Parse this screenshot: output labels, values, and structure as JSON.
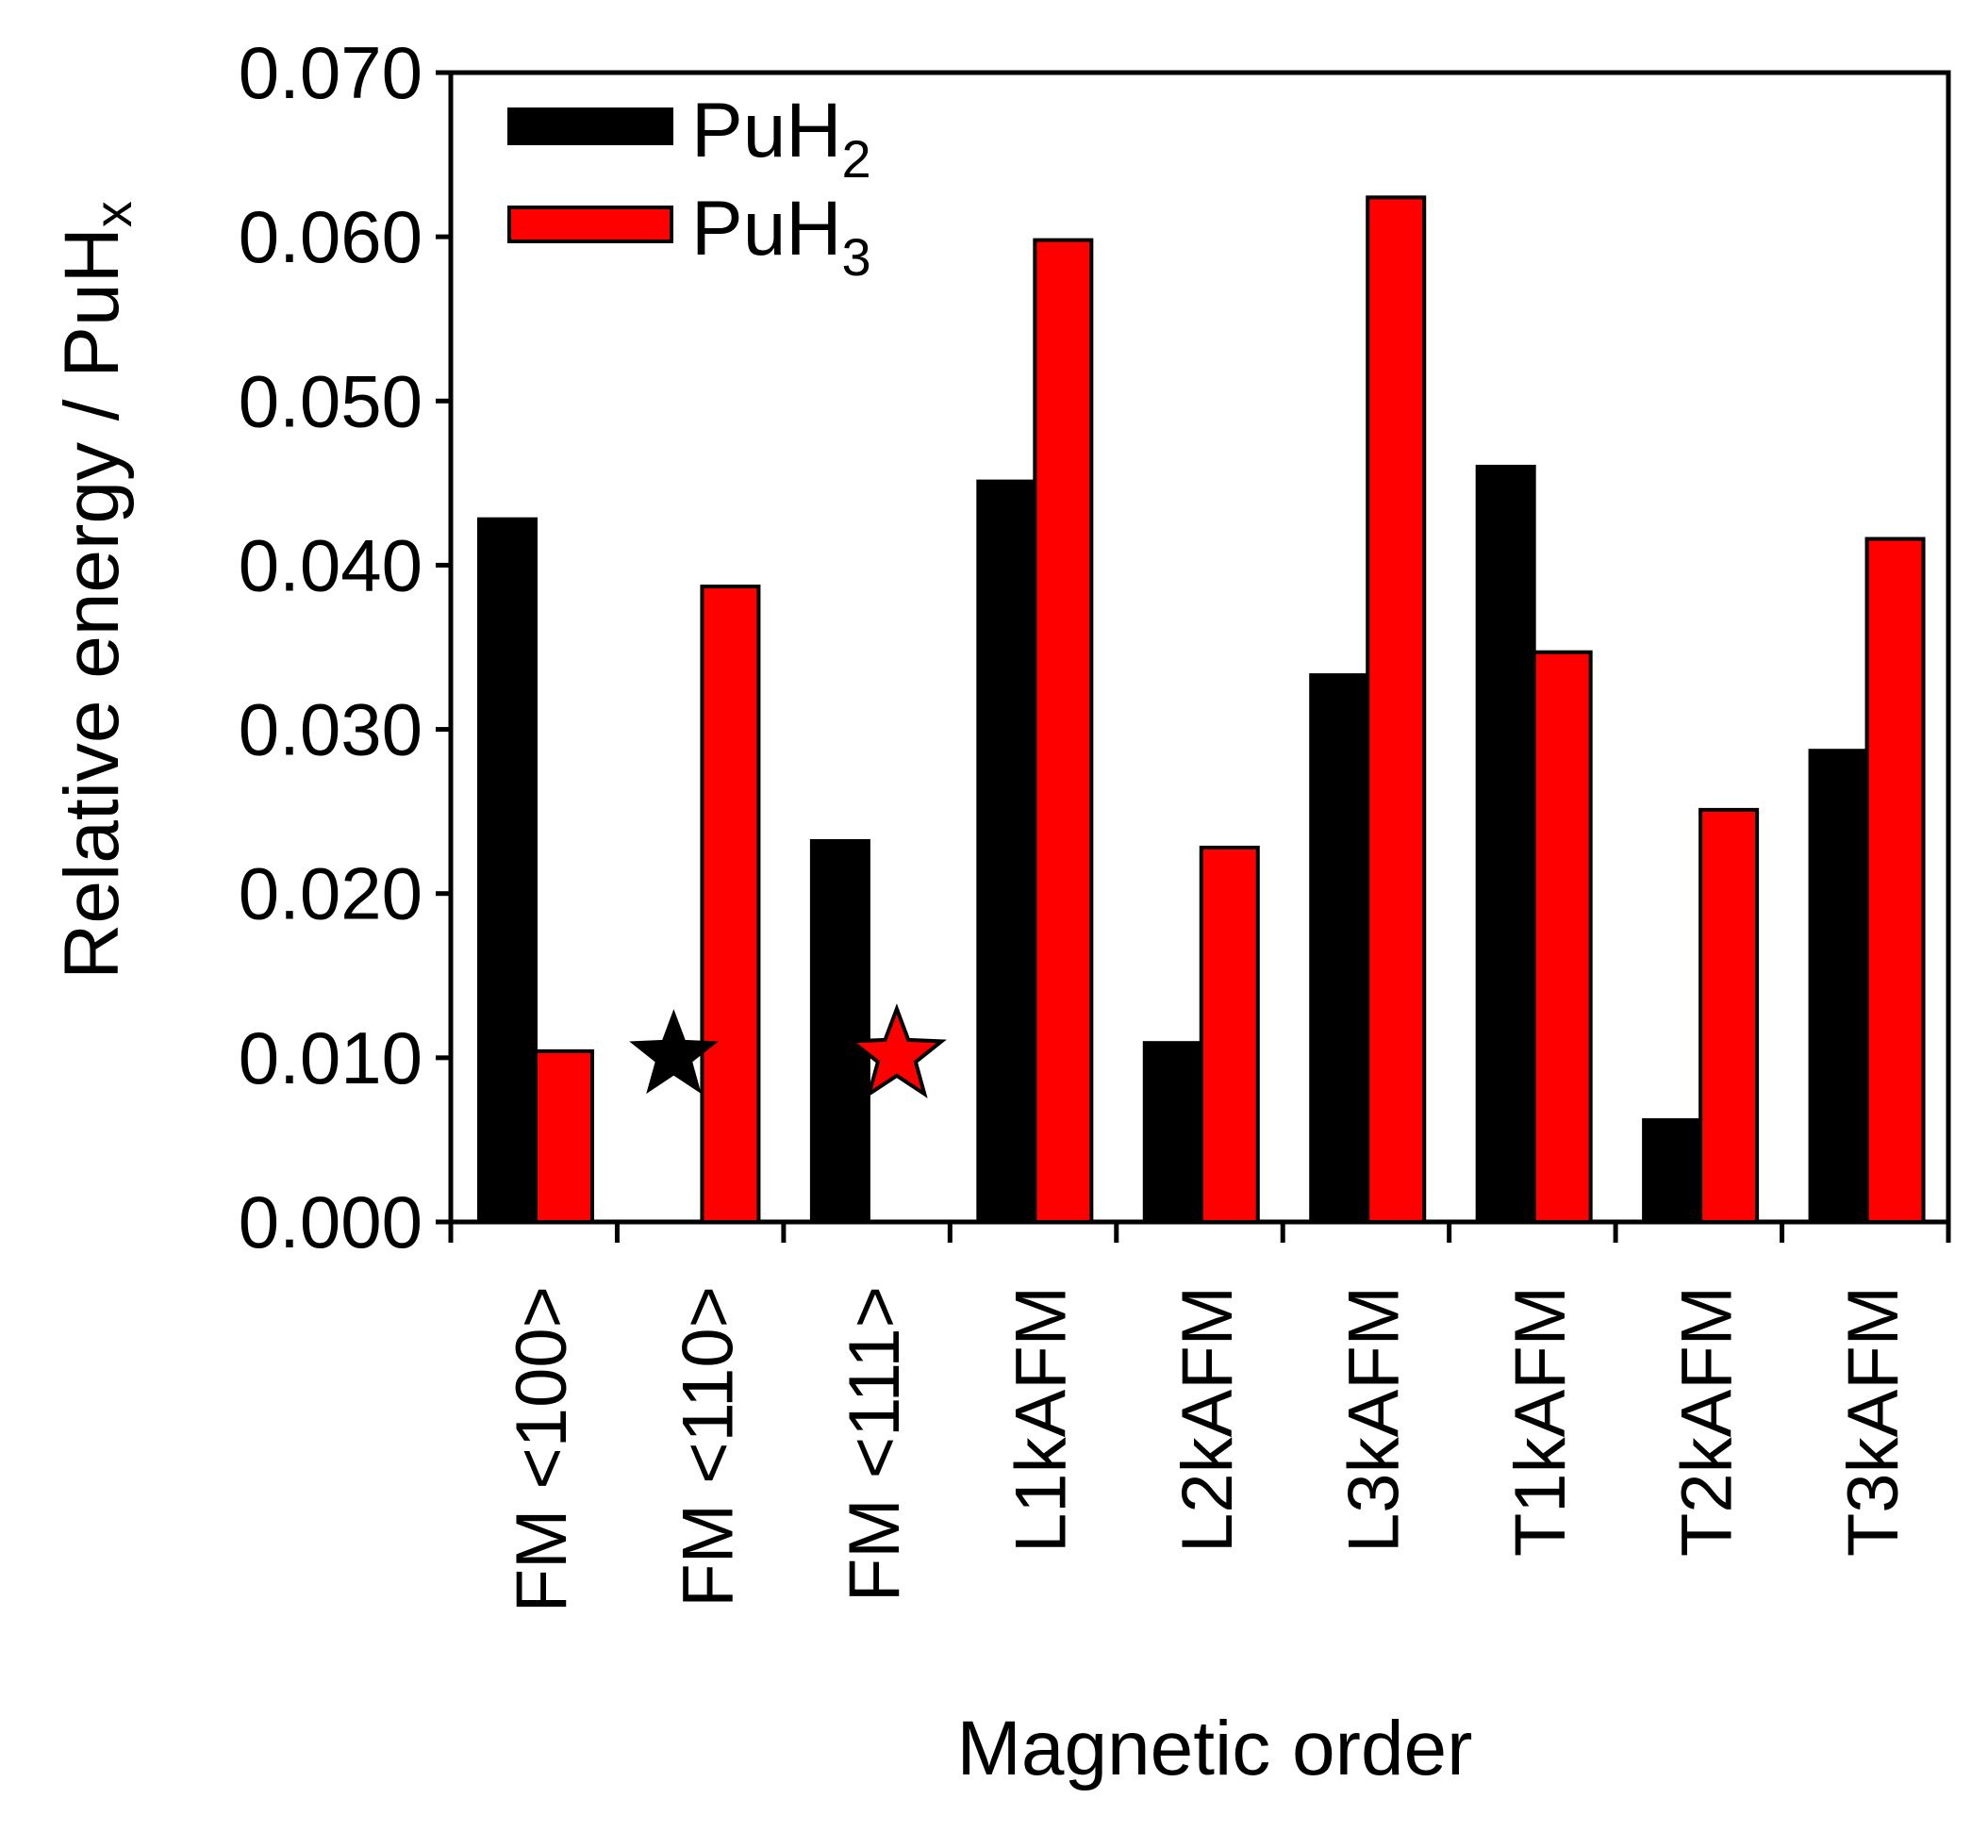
{
  "chart_data": {
    "type": "bar",
    "xlabel": "Magnetic order",
    "ylabel": {
      "main": "Relative energy / PuH",
      "subscript": "x"
    },
    "ylim": [
      0,
      0.07
    ],
    "yticks": [
      "0.000",
      "0.010",
      "0.020",
      "0.030",
      "0.040",
      "0.050",
      "0.060",
      "0.070"
    ],
    "categories": [
      "FM <100>",
      "FM <110>",
      "FM <111>",
      "L1kAFM",
      "L2kAFM",
      "L3kAFM",
      "T1kAFM",
      "T2kAFM",
      "T3kAFM"
    ],
    "series": [
      {
        "name": "PuH",
        "subscript": "2",
        "color": "#000000",
        "values": [
          0.0428,
          0.0,
          0.0232,
          0.0451,
          0.0109,
          0.0333,
          0.046,
          0.0062,
          0.0287
        ]
      },
      {
        "name": "PuH",
        "subscript": "3",
        "color": "#ff0000",
        "values": [
          0.0104,
          0.0387,
          0.0,
          0.0598,
          0.0228,
          0.0624,
          0.0347,
          0.0251,
          0.0416
        ]
      }
    ],
    "markers": [
      {
        "category": "FM <110>",
        "series_index": 0,
        "value": 0.01,
        "shape": "star-icon",
        "color": "#000000"
      },
      {
        "category": "FM <111>",
        "series_index": 1,
        "value": 0.01,
        "shape": "star-icon",
        "color": "#ff0000"
      }
    ],
    "legend_position": "top-left",
    "grid": false
  }
}
